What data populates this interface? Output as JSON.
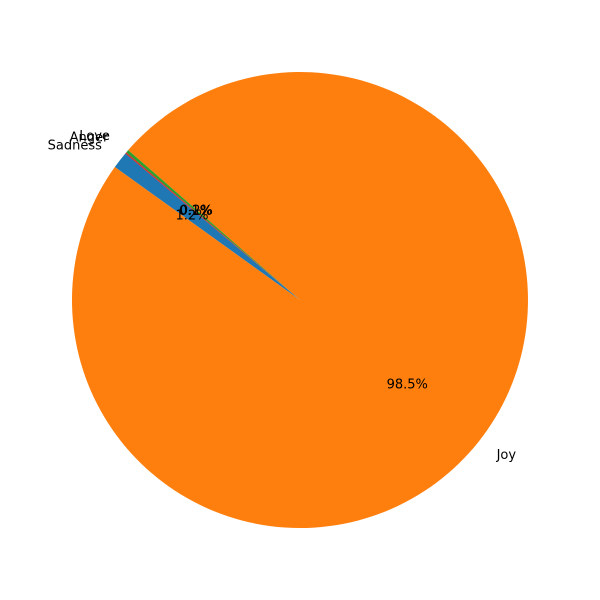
{
  "chart_data": {
    "type": "pie",
    "title": "",
    "slices": [
      {
        "label": "Sadness",
        "value": 1.2,
        "pct_label": "1.2%",
        "color": "#1f77b4"
      },
      {
        "label": "Joy",
        "value": 98.5,
        "pct_label": "98.5%",
        "color": "#ff7f0e"
      },
      {
        "label": "Love",
        "value": 0.2,
        "pct_label": "0.2%",
        "color": "#2ca02c"
      },
      {
        "label": "Anger",
        "value": 0.1,
        "pct_label": "0.1%",
        "color": "#d62728"
      }
    ],
    "start_angle_deg": 140,
    "direction": "counterclockwise",
    "legend": "none"
  }
}
